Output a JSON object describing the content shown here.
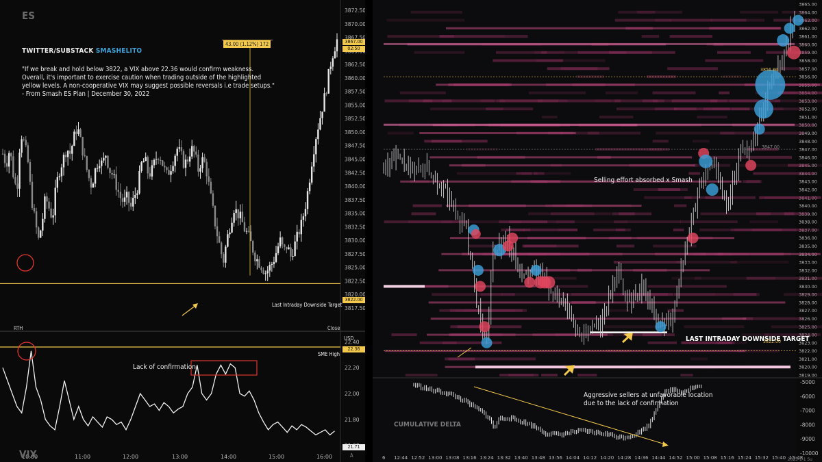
{
  "left": {
    "watermark_top": "ES",
    "watermark_bottom": "VIX",
    "source_prefix": "TWITTER/SUBSTACK",
    "source_handle": "SMASHELITO",
    "quote": "\"If we break and hold below 3822, a VIX above 22.36 would confirm weakness.\nOverall, it's important to exercise caution when trading outside of the highlighted\nyellow levels. A non-cooperative VIX may suggest possible reversals i.e trade setups.\"\n- From Smash ES Plan | December 30, 2022",
    "measure_label": "43.00 (1.12%) 172",
    "target_label": "Last Intraday Downside Target",
    "rth_label": "RTH",
    "close_label": "Close",
    "usd_label": "USD",
    "sme_high_label": "SME High",
    "lack_label": "Lack of confirmation",
    "auto_label": "A",
    "price_tag_last": "3867.00",
    "price_tag_time": "02:50",
    "price_tag_target": "3822.00",
    "vix_tag_level": "22.36",
    "vix_tag_last": "21.71",
    "colors": {
      "level": "#f2c94c",
      "circle": "#e0362f",
      "bull": "#e8e8e8",
      "bear": "#8a8a8a"
    }
  },
  "right": {
    "absorbed_label": "Selling effort absorbed x Smash",
    "target_label": "LAST INTRADAY DOWNSIDE TARGET",
    "delta_title": "CUMULATIVE DELTA",
    "aggr_label_1": "Aggressive sellers at unfavorable location",
    "aggr_label_2": "due to the lack of confirmation",
    "level_3856": "3856.00",
    "level_3847": "3847.00",
    "level_3822": "3822.00",
    "date_tag": "2023-1-1 Su",
    "colors": {
      "blue_bubble": "#3a9fd8",
      "red_bubble": "#e0465e",
      "heat": "#8a2e5a"
    }
  },
  "chart_data": [
    {
      "type": "candlestick",
      "title": "ES",
      "ylim": [
        3817.5,
        3872.5
      ],
      "y_ticks": [
        "3872.50",
        "3870.00",
        "3867.50",
        "3865.00",
        "3862.50",
        "3860.00",
        "3857.50",
        "3855.00",
        "3852.50",
        "3850.00",
        "3847.50",
        "3845.00",
        "3842.50",
        "3840.00",
        "3837.50",
        "3835.00",
        "3832.50",
        "3830.00",
        "3827.50",
        "3825.00",
        "3822.50",
        "3820.00",
        "3817.50"
      ],
      "x_ticks": [
        "10:00",
        "11:00",
        "12:00",
        "13:00",
        "14:00",
        "15:00",
        "16:00"
      ],
      "levels": [
        {
          "label": "Last Intraday Downside Target",
          "value": 3822.0
        }
      ],
      "close_path": [
        [
          0,
          3846
        ],
        [
          3,
          3844
        ],
        [
          6,
          3847
        ],
        [
          9,
          3842
        ],
        [
          12,
          3839
        ],
        [
          15,
          3850
        ],
        [
          18,
          3848
        ],
        [
          21,
          3845
        ],
        [
          24,
          3838
        ],
        [
          27,
          3834
        ],
        [
          30,
          3830
        ],
        [
          33,
          3833
        ],
        [
          36,
          3838
        ],
        [
          39,
          3836
        ],
        [
          42,
          3834
        ],
        [
          45,
          3840
        ],
        [
          48,
          3843
        ],
        [
          51,
          3845
        ],
        [
          54,
          3847
        ],
        [
          57,
          3846
        ],
        [
          60,
          3849
        ],
        [
          63,
          3851
        ],
        [
          66,
          3848
        ],
        [
          69,
          3845
        ],
        [
          72,
          3842
        ],
        [
          75,
          3840
        ],
        [
          78,
          3843
        ],
        [
          81,
          3845
        ],
        [
          84,
          3844
        ],
        [
          87,
          3846
        ],
        [
          90,
          3843
        ],
        [
          93,
          3842
        ],
        [
          96,
          3840
        ],
        [
          99,
          3838
        ],
        [
          102,
          3837
        ],
        [
          105,
          3838
        ],
        [
          108,
          3836
        ],
        [
          111,
          3838
        ],
        [
          114,
          3840
        ],
        [
          117,
          3844
        ],
        [
          120,
          3845
        ],
        [
          123,
          3842
        ],
        [
          126,
          3843
        ],
        [
          129,
          3845
        ],
        [
          132,
          3846
        ],
        [
          135,
          3844
        ],
        [
          138,
          3842
        ],
        [
          141,
          3843
        ],
        [
          144,
          3845
        ],
        [
          147,
          3847
        ],
        [
          150,
          3846
        ],
        [
          153,
          3844
        ],
        [
          156,
          3845
        ],
        [
          159,
          3847
        ],
        [
          162,
          3846
        ],
        [
          165,
          3843
        ],
        [
          168,
          3845
        ],
        [
          171,
          3844
        ],
        [
          174,
          3840
        ],
        [
          177,
          3836
        ],
        [
          180,
          3832
        ],
        [
          183,
          3829
        ],
        [
          186,
          3826
        ],
        [
          189,
          3830
        ],
        [
          192,
          3833
        ],
        [
          195,
          3836
        ],
        [
          198,
          3835
        ],
        [
          201,
          3834
        ],
        [
          204,
          3832
        ],
        [
          207,
          3831
        ],
        [
          210,
          3829
        ],
        [
          213,
          3827
        ],
        [
          216,
          3826
        ],
        [
          219,
          3825
        ],
        [
          222,
          3824
        ],
        [
          225,
          3825
        ],
        [
          228,
          3826
        ],
        [
          231,
          3828
        ],
        [
          234,
          3830
        ],
        [
          237,
          3828
        ],
        [
          240,
          3829
        ],
        [
          243,
          3827
        ],
        [
          246,
          3829
        ],
        [
          249,
          3831
        ],
        [
          252,
          3833
        ],
        [
          255,
          3836
        ],
        [
          258,
          3840
        ],
        [
          261,
          3845
        ],
        [
          264,
          3849
        ],
        [
          267,
          3852
        ],
        [
          270,
          3855
        ],
        [
          273,
          3858
        ],
        [
          276,
          3862
        ],
        [
          279,
          3865
        ],
        [
          282,
          3867
        ]
      ]
    },
    {
      "type": "line",
      "title": "VIX",
      "ylim": [
        21.55,
        22.45
      ],
      "y_ticks": [
        "22.40",
        "22.20",
        "22.00",
        "21.80",
        "21.60"
      ],
      "levels": [
        {
          "label": "SME High",
          "value": 22.36
        }
      ],
      "series": [
        {
          "values": [
            [
              0,
              22.2
            ],
            [
              4,
              22.1
            ],
            [
              8,
              22.0
            ],
            [
              12,
              21.9
            ],
            [
              16,
              21.85
            ],
            [
              20,
              22.05
            ],
            [
              24,
              22.33
            ],
            [
              28,
              22.05
            ],
            [
              32,
              21.95
            ],
            [
              36,
              21.8
            ],
            [
              40,
              21.75
            ],
            [
              44,
              21.72
            ],
            [
              48,
              21.9
            ],
            [
              52,
              22.1
            ],
            [
              56,
              21.95
            ],
            [
              60,
              21.8
            ],
            [
              64,
              21.9
            ],
            [
              68,
              21.8
            ],
            [
              72,
              21.75
            ],
            [
              76,
              21.82
            ],
            [
              80,
              21.78
            ],
            [
              84,
              21.74
            ],
            [
              88,
              21.82
            ],
            [
              92,
              21.8
            ],
            [
              96,
              21.76
            ],
            [
              100,
              21.78
            ],
            [
              104,
              21.72
            ],
            [
              108,
              21.8
            ],
            [
              112,
              21.9
            ],
            [
              116,
              22.0
            ],
            [
              120,
              21.95
            ],
            [
              124,
              21.9
            ],
            [
              128,
              21.92
            ],
            [
              132,
              21.87
            ],
            [
              136,
              21.93
            ],
            [
              140,
              21.9
            ],
            [
              144,
              21.85
            ],
            [
              148,
              21.88
            ],
            [
              152,
              21.9
            ],
            [
              156,
              22.0
            ],
            [
              160,
              22.05
            ],
            [
              164,
              22.22
            ],
            [
              168,
              22.0
            ],
            [
              172,
              21.95
            ],
            [
              176,
              22.0
            ],
            [
              180,
              22.15
            ],
            [
              184,
              22.22
            ],
            [
              188,
              22.15
            ],
            [
              192,
              22.23
            ],
            [
              196,
              22.2
            ],
            [
              200,
              22.0
            ],
            [
              204,
              21.98
            ],
            [
              208,
              22.02
            ],
            [
              212,
              21.95
            ],
            [
              216,
              21.85
            ],
            [
              220,
              21.78
            ],
            [
              224,
              21.72
            ],
            [
              228,
              21.76
            ],
            [
              232,
              21.78
            ],
            [
              236,
              21.74
            ],
            [
              240,
              21.7
            ],
            [
              244,
              21.75
            ],
            [
              248,
              21.72
            ],
            [
              252,
              21.76
            ],
            [
              256,
              21.74
            ],
            [
              260,
              21.71
            ],
            [
              264,
              21.68
            ],
            [
              268,
              21.7
            ],
            [
              272,
              21.72
            ],
            [
              276,
              21.68
            ],
            [
              280,
              21.71
            ]
          ]
        }
      ]
    },
    {
      "type": "heatmap",
      "title": "Order flow heatmap (ES)",
      "ylim": [
        3819,
        3865
      ],
      "x_ticks": [
        "6",
        "12:44",
        "12:52",
        "13:00",
        "13:08",
        "13:16",
        "13:24",
        "13:32",
        "13:40",
        "13:48",
        "13:56",
        "14:04",
        "14:12",
        "14:20",
        "14:28",
        "14:36",
        "14:44",
        "14:52",
        "15:00",
        "15:08",
        "15:16",
        "15:24",
        "15:32",
        "15:40",
        "15:48"
      ],
      "bubbles": [
        {
          "t": "13:18",
          "price": 3837,
          "color": "blue",
          "size": 8
        },
        {
          "t": "13:19",
          "price": 3836.5,
          "color": "red",
          "size": 7
        },
        {
          "t": "13:20",
          "price": 3832,
          "color": "blue",
          "size": 8
        },
        {
          "t": "13:21",
          "price": 3830,
          "color": "red",
          "size": 8
        },
        {
          "t": "13:23",
          "price": 3825,
          "color": "red",
          "size": 8
        },
        {
          "t": "13:24",
          "price": 3823,
          "color": "blue",
          "size": 8
        },
        {
          "t": "13:30",
          "price": 3834.5,
          "color": "blue",
          "size": 9
        },
        {
          "t": "13:34",
          "price": 3835,
          "color": "red",
          "size": 8
        },
        {
          "t": "13:36",
          "price": 3836,
          "color": "red",
          "size": 8
        },
        {
          "t": "13:44",
          "price": 3830.5,
          "color": "red",
          "size": 8
        },
        {
          "t": "13:47",
          "price": 3832,
          "color": "blue",
          "size": 8
        },
        {
          "t": "13:49",
          "price": 3830.5,
          "color": "red",
          "size": 9
        },
        {
          "t": "13:51",
          "price": 3830.5,
          "color": "red",
          "size": 9
        },
        {
          "t": "13:53",
          "price": 3830.5,
          "color": "red",
          "size": 9
        },
        {
          "t": "14:45",
          "price": 3825,
          "color": "blue",
          "size": 8
        },
        {
          "t": "15:00",
          "price": 3836,
          "color": "red",
          "size": 8
        },
        {
          "t": "15:05",
          "price": 3846.5,
          "color": "red",
          "size": 8
        },
        {
          "t": "15:06",
          "price": 3845.5,
          "color": "blue",
          "size": 10
        },
        {
          "t": "15:09",
          "price": 3842,
          "color": "blue",
          "size": 9
        },
        {
          "t": "15:27",
          "price": 3845,
          "color": "red",
          "size": 8
        },
        {
          "t": "15:31",
          "price": 3849.5,
          "color": "blue",
          "size": 8
        },
        {
          "t": "15:33",
          "price": 3852,
          "color": "blue",
          "size": 14
        },
        {
          "t": "15:36",
          "price": 3855,
          "color": "blue",
          "size": 22
        },
        {
          "t": "15:42",
          "price": 3860.5,
          "color": "blue",
          "size": 9
        },
        {
          "t": "15:45",
          "price": 3862,
          "color": "blue",
          "size": 8
        },
        {
          "t": "15:47",
          "price": 3859,
          "color": "red",
          "size": 10
        },
        {
          "t": "15:49",
          "price": 3863,
          "color": "blue",
          "size": 8
        }
      ],
      "levels": [
        {
          "label": "3856.00",
          "value": 3856
        },
        {
          "label": "3847.00",
          "value": 3847
        },
        {
          "label": "3822.00",
          "value": 3822
        }
      ]
    },
    {
      "type": "line",
      "title": "CUMULATIVE DELTA",
      "ylim": [
        -10000,
        -5000
      ],
      "y_ticks": [
        "-5000",
        "-6000",
        "-7000",
        "-8000",
        "-9000",
        "-10000"
      ],
      "series": [
        {
          "values": [
            [
              0,
              -5200
            ],
            [
              8,
              -5400
            ],
            [
              16,
              -5600
            ],
            [
              24,
              -5700
            ],
            [
              32,
              -5900
            ],
            [
              40,
              -6200
            ],
            [
              48,
              -6600
            ],
            [
              56,
              -7000
            ],
            [
              64,
              -7500
            ],
            [
              68,
              -8300
            ],
            [
              72,
              -7600
            ],
            [
              80,
              -7500
            ],
            [
              88,
              -7700
            ],
            [
              96,
              -7900
            ],
            [
              104,
              -8200
            ],
            [
              112,
              -8600
            ],
            [
              120,
              -8700
            ],
            [
              128,
              -8650
            ],
            [
              136,
              -8500
            ],
            [
              144,
              -8450
            ],
            [
              152,
              -8550
            ],
            [
              160,
              -8600
            ],
            [
              168,
              -8750
            ],
            [
              176,
              -8900
            ],
            [
              184,
              -8800
            ],
            [
              192,
              -8500
            ],
            [
              200,
              -8000
            ],
            [
              206,
              -6800
            ],
            [
              212,
              -5800
            ],
            [
              220,
              -5500
            ],
            [
              228,
              -5700
            ],
            [
              236,
              -5400
            ],
            [
              244,
              -5300
            ]
          ]
        }
      ]
    }
  ]
}
